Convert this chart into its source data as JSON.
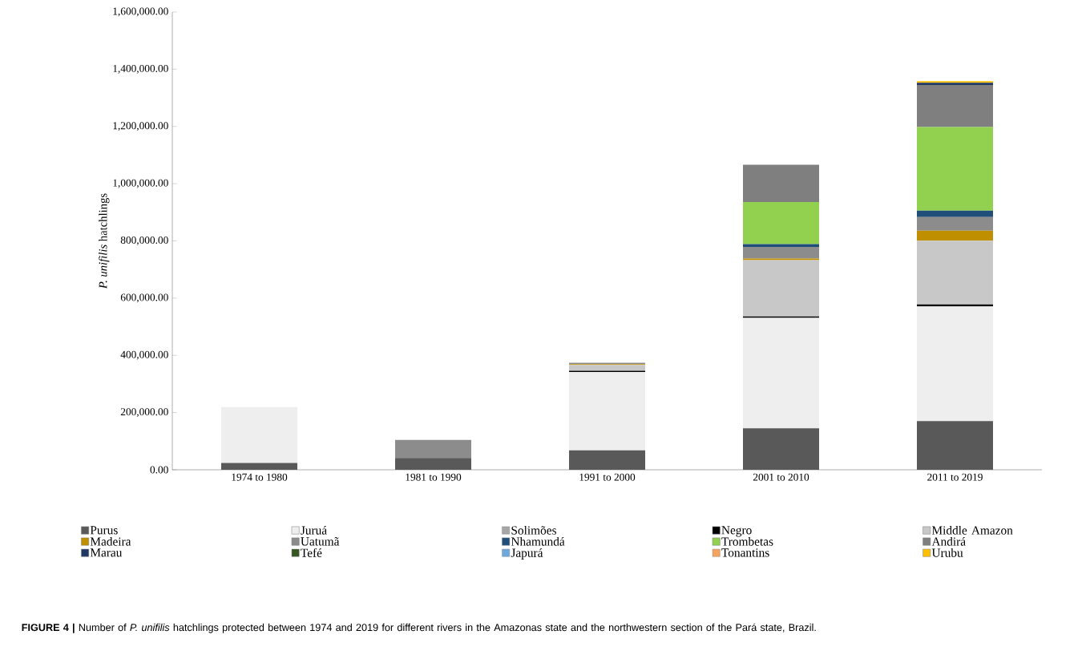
{
  "chart_data": {
    "type": "bar",
    "stacked": true,
    "ylabel": "*P. unifilis* hatchlings",
    "categories": [
      "1974 to 1980",
      "1981 to 1990",
      "1991 to 2000",
      "2001 to 2010",
      "2011 to 2019"
    ],
    "series": [
      {
        "name": "Purus",
        "color": "#595959",
        "values": [
          24000,
          41000,
          68000,
          145000,
          170000
        ]
      },
      {
        "name": "Juruá",
        "color": "#eeeeee",
        "values": [
          195000,
          null,
          274000,
          386000,
          401000
        ]
      },
      {
        "name": "Solimões",
        "color": "#a6a6a6",
        "values": [
          null,
          null,
          null,
          null,
          null
        ]
      },
      {
        "name": "Negro",
        "color": "#000000",
        "values": [
          null,
          null,
          4000,
          5000,
          7000
        ]
      },
      {
        "name": "Middle Amazon",
        "color": "#c8c8c8",
        "values": [
          null,
          null,
          20000,
          197000,
          223000
        ]
      },
      {
        "name": "Madeira",
        "color": "#bf8f00",
        "values": [
          null,
          null,
          3000,
          5000,
          35000
        ]
      },
      {
        "name": "Uatumã",
        "color": "#8c8c8c",
        "values": [
          null,
          63000,
          5000,
          41000,
          47000
        ]
      },
      {
        "name": "Nhamundá",
        "color": "#1f4e79",
        "values": [
          null,
          null,
          null,
          10000,
          23000
        ]
      },
      {
        "name": "Trombetas",
        "color": "#92d050",
        "values": [
          null,
          null,
          null,
          147000,
          292000
        ]
      },
      {
        "name": "Andirá",
        "color": "#7f7f7f",
        "values": [
          null,
          null,
          null,
          130000,
          147000
        ]
      },
      {
        "name": "Marau",
        "color": "#203864",
        "values": [
          null,
          null,
          null,
          null,
          8000
        ]
      },
      {
        "name": "Tefé",
        "color": "#375623",
        "values": [
          null,
          null,
          null,
          null,
          null
        ]
      },
      {
        "name": "Japurá",
        "color": "#6fa8dc",
        "values": [
          null,
          null,
          null,
          null,
          null
        ]
      },
      {
        "name": "Tonantins",
        "color": "#f4a460",
        "values": [
          null,
          null,
          null,
          null,
          null
        ]
      },
      {
        "name": "Urubu",
        "color": "#ffc000",
        "values": [
          null,
          null,
          null,
          null,
          5000
        ]
      }
    ],
    "ylim": [
      0,
      1600000
    ],
    "yticks": [
      {
        "value": 0,
        "label": "0.00"
      },
      {
        "value": 200000,
        "label": "200,000.00"
      },
      {
        "value": 400000,
        "label": "400,000.00"
      },
      {
        "value": 600000,
        "label": "600,000.00"
      },
      {
        "value": 800000,
        "label": "800,000.00"
      },
      {
        "value": 1000000,
        "label": "1,000,000.00"
      },
      {
        "value": 1200000,
        "label": "1,200,000.00"
      },
      {
        "value": 1400000,
        "label": "1,400,000.00"
      },
      {
        "value": 1600000,
        "label": "1,600,000.00"
      }
    ],
    "legend": "bottom",
    "annotations": [
      "**FIGURE 4 |** Number of *P. unifilis* hatchlings protected between 1974 and 2019 for different rivers in the Amazonas state and the northwestern section of the Pará state, Brazil."
    ]
  }
}
